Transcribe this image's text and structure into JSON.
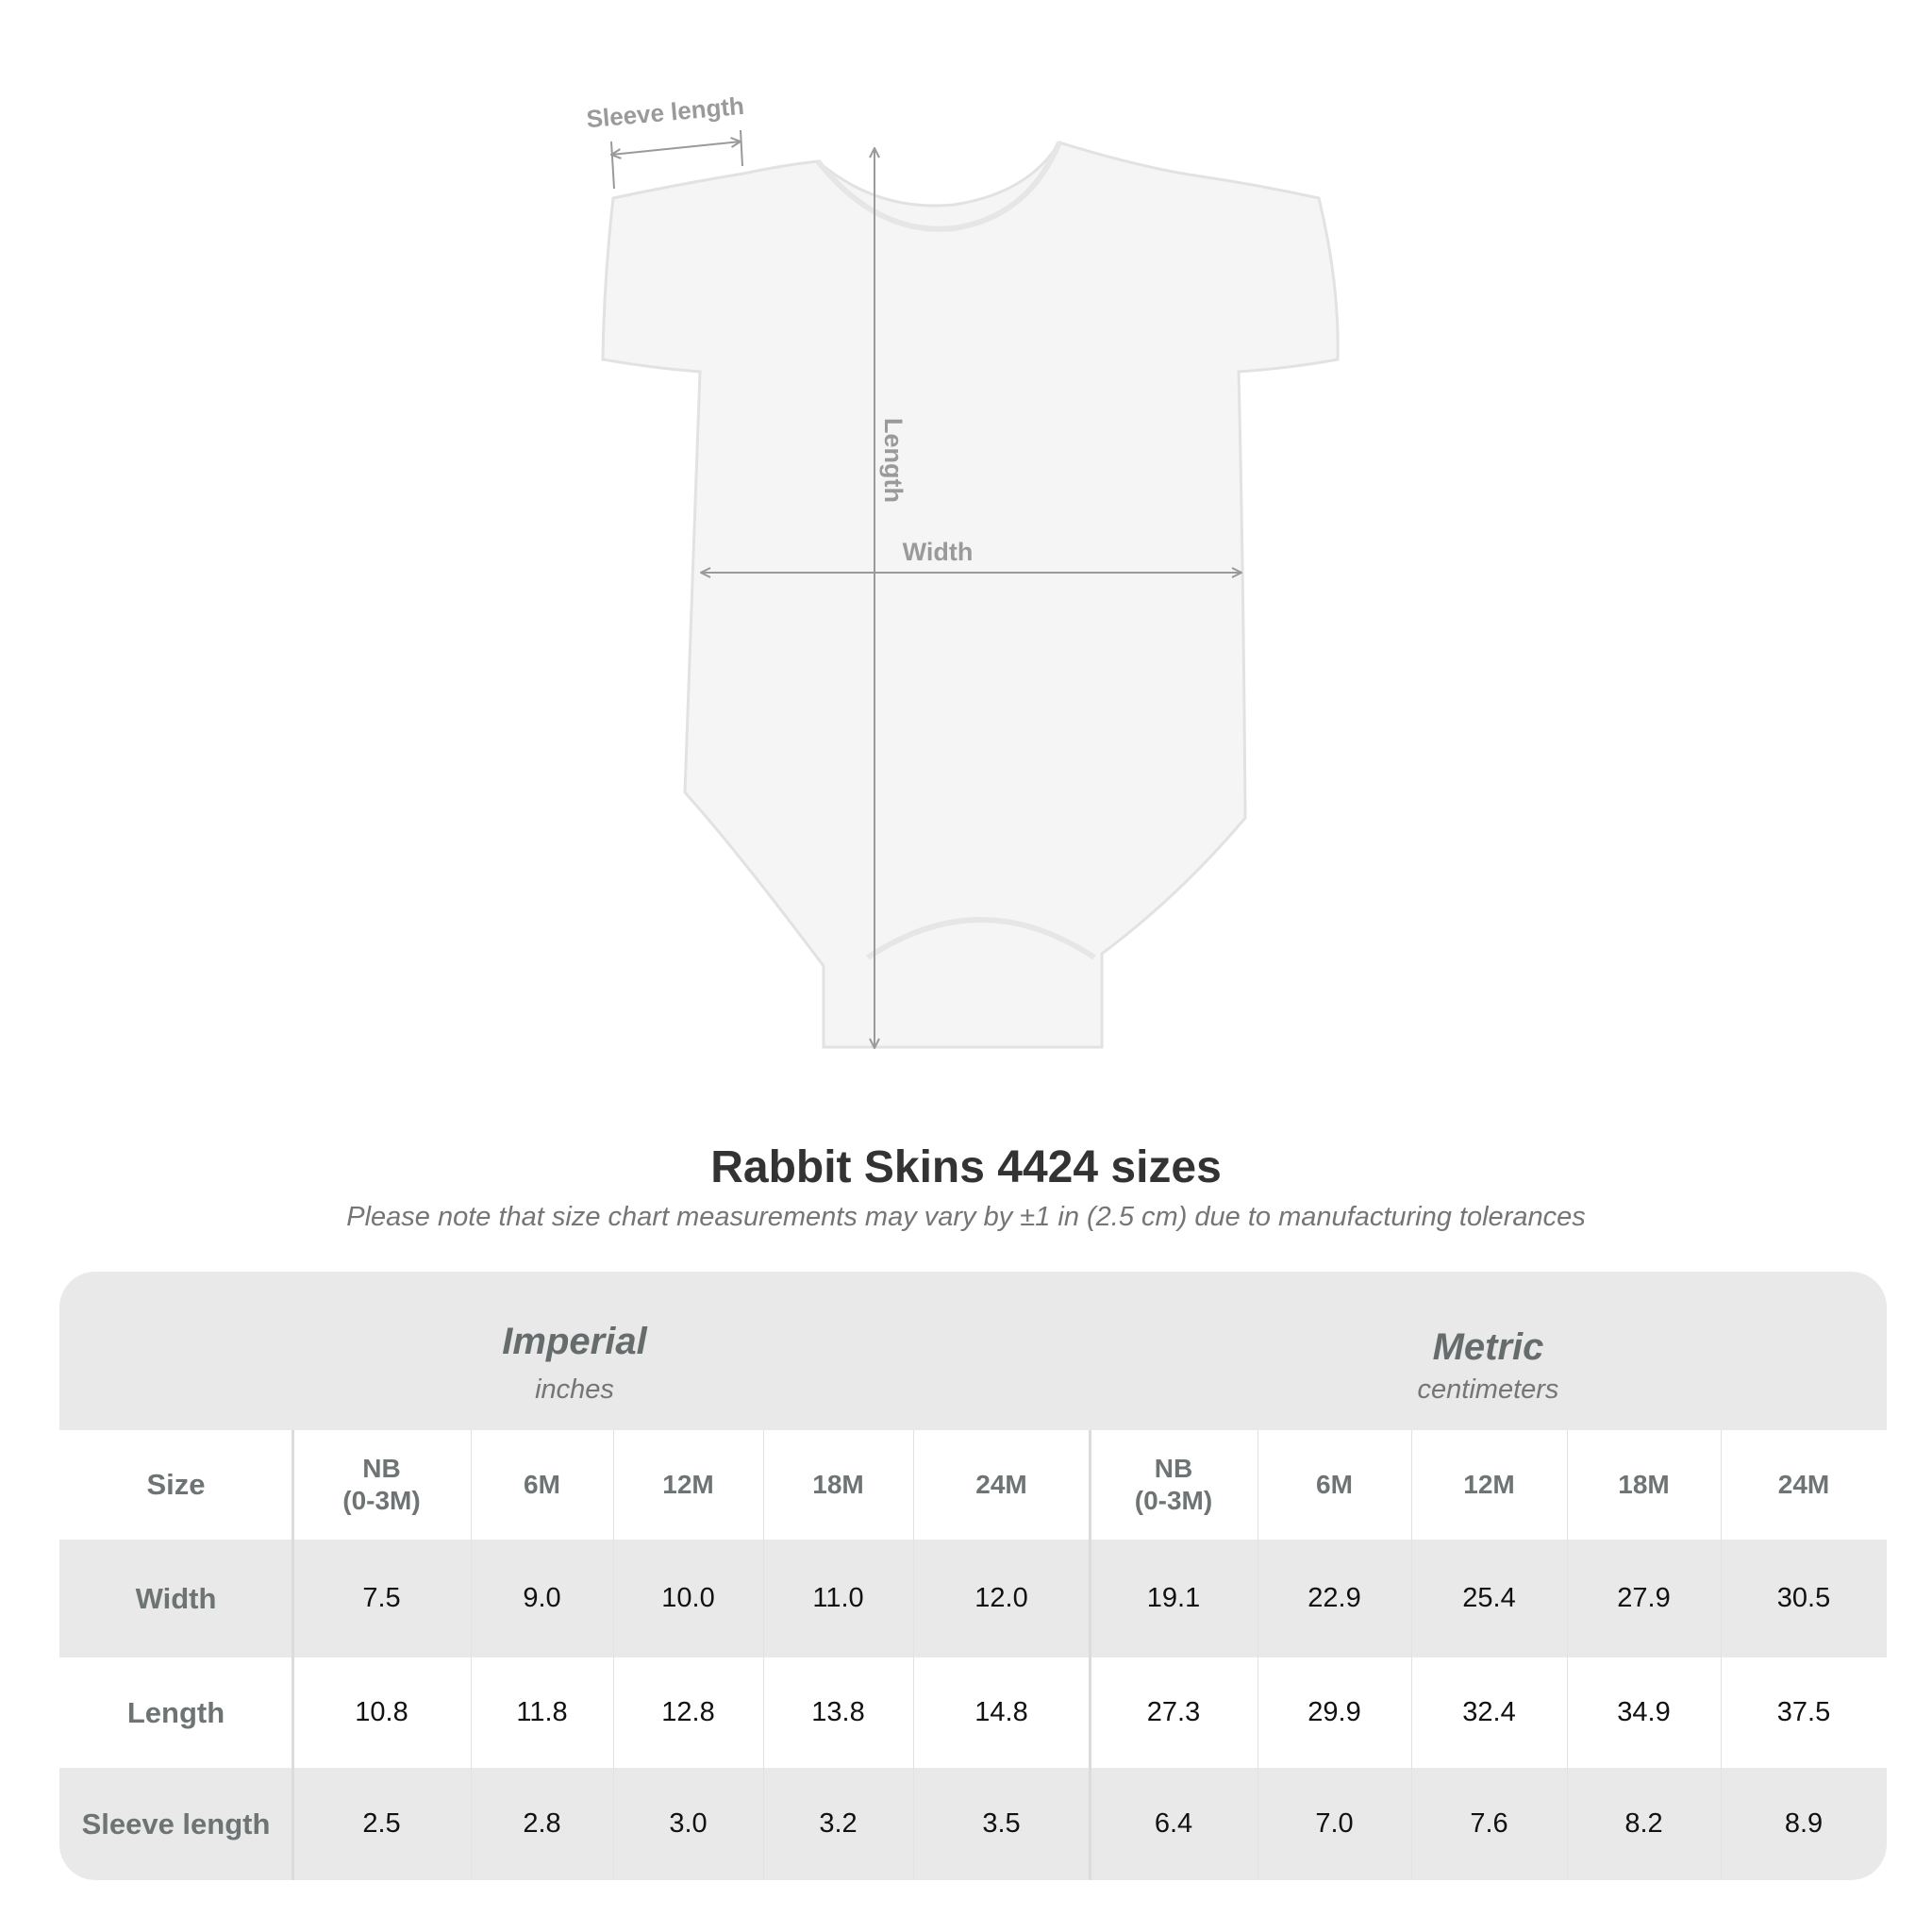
{
  "figure": {
    "labels": {
      "sleeve": "Sleeve length",
      "length": "Length",
      "width": "Width"
    },
    "garment_color": "#f5f5f5",
    "arrow_color": "#9a9a9a"
  },
  "title": "Rabbit Skins 4424 sizes",
  "subtitle": "Please note that size chart measurements may vary by ±1 in (2.5 cm) due to manufacturing tolerances",
  "table": {
    "imperial": {
      "title": "Imperial",
      "unit": "inches"
    },
    "metric": {
      "title": "Metric",
      "unit": "centimeters"
    },
    "size_label": "Size",
    "sizes": [
      "NB\n(0-3M)",
      "6M",
      "12M",
      "18M",
      "24M",
      "NB\n(0-3M)",
      "6M",
      "12M",
      "18M",
      "24M"
    ],
    "rows": [
      {
        "label": "Width",
        "values": [
          "7.5",
          "9.0",
          "10.0",
          "11.0",
          "12.0",
          "19.1",
          "22.9",
          "25.4",
          "27.9",
          "30.5"
        ]
      },
      {
        "label": "Length",
        "values": [
          "10.8",
          "11.8",
          "12.8",
          "13.8",
          "14.8",
          "27.3",
          "29.9",
          "32.4",
          "34.9",
          "37.5"
        ]
      },
      {
        "label": "Sleeve length",
        "values": [
          "2.5",
          "2.8",
          "3.0",
          "3.2",
          "3.5",
          "6.4",
          "7.0",
          "7.6",
          "8.2",
          "8.9"
        ]
      }
    ],
    "band_color": "#e9e9e9"
  }
}
